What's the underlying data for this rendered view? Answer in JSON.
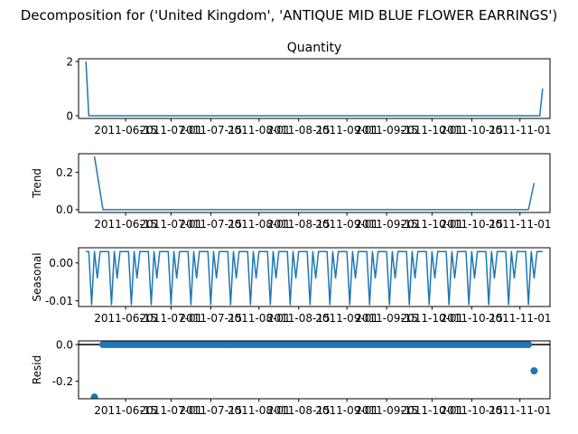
{
  "chart_data": {
    "type": "line",
    "title": "Decomposition for ('United Kingdom', 'ANTIQUE MID BLUE FLOWER EARRINGS')",
    "x_range": [
      "2011-06-01",
      "2011-11-09"
    ],
    "x_ticks": [
      "2011-06-15",
      "2011-07-01",
      "2011-07-15",
      "2011-08-01",
      "2011-08-15",
      "2011-09-01",
      "2011-09-15",
      "2011-10-01",
      "2011-10-15",
      "2011-11-01"
    ],
    "panels": [
      {
        "id": "quantity",
        "title": "Quantity",
        "ylabel": "",
        "kind": "line",
        "ylim": [
          -0.1,
          2.1
        ],
        "yticks": [
          {
            "value": 0,
            "label": "0"
          },
          {
            "value": 2,
            "label": "2"
          }
        ],
        "series": [
          {
            "points": [
              [
                "2011-06-01",
                2
              ],
              [
                "2011-06-02",
                0
              ],
              [
                "2011-11-08",
                0
              ],
              [
                "2011-11-09",
                1
              ]
            ]
          }
        ]
      },
      {
        "id": "trend",
        "title": "",
        "ylabel": "Trend",
        "kind": "line",
        "ylim": [
          -0.015,
          0.3
        ],
        "yticks": [
          {
            "value": 0.0,
            "label": "0.0"
          },
          {
            "value": 0.2,
            "label": "0.2"
          }
        ],
        "series": [
          {
            "points": [
              [
                "2011-06-04",
                0.286
              ],
              [
                "2011-06-07",
                0.0
              ],
              [
                "2011-11-04",
                0.0
              ],
              [
                "2011-11-06",
                0.143
              ]
            ]
          }
        ]
      },
      {
        "id": "seasonal",
        "title": "",
        "ylabel": "Seasonal",
        "kind": "seasonal",
        "ylim": [
          -0.0115,
          0.004
        ],
        "yticks": [
          {
            "value": 0.0,
            "label": "0.00"
          },
          {
            "value": -0.01,
            "label": "-0.01"
          }
        ],
        "start": "2011-06-01",
        "end": "2011-11-09",
        "weekly_pattern": [
          0.003,
          0.003,
          -0.011,
          0.003,
          -0.004,
          0.003,
          0.003
        ]
      },
      {
        "id": "resid",
        "title": "",
        "ylabel": "Resid",
        "kind": "scatter",
        "ylim": [
          -0.295,
          0.02
        ],
        "zero_line": true,
        "yticks": [
          {
            "value": 0.0,
            "label": "0.0"
          },
          {
            "value": -0.2,
            "label": "-0.2"
          }
        ],
        "outliers": [
          [
            "2011-06-04",
            -0.286
          ],
          [
            "2011-11-06",
            -0.143
          ]
        ],
        "zero_range": [
          "2011-06-07",
          "2011-11-04"
        ]
      }
    ]
  }
}
